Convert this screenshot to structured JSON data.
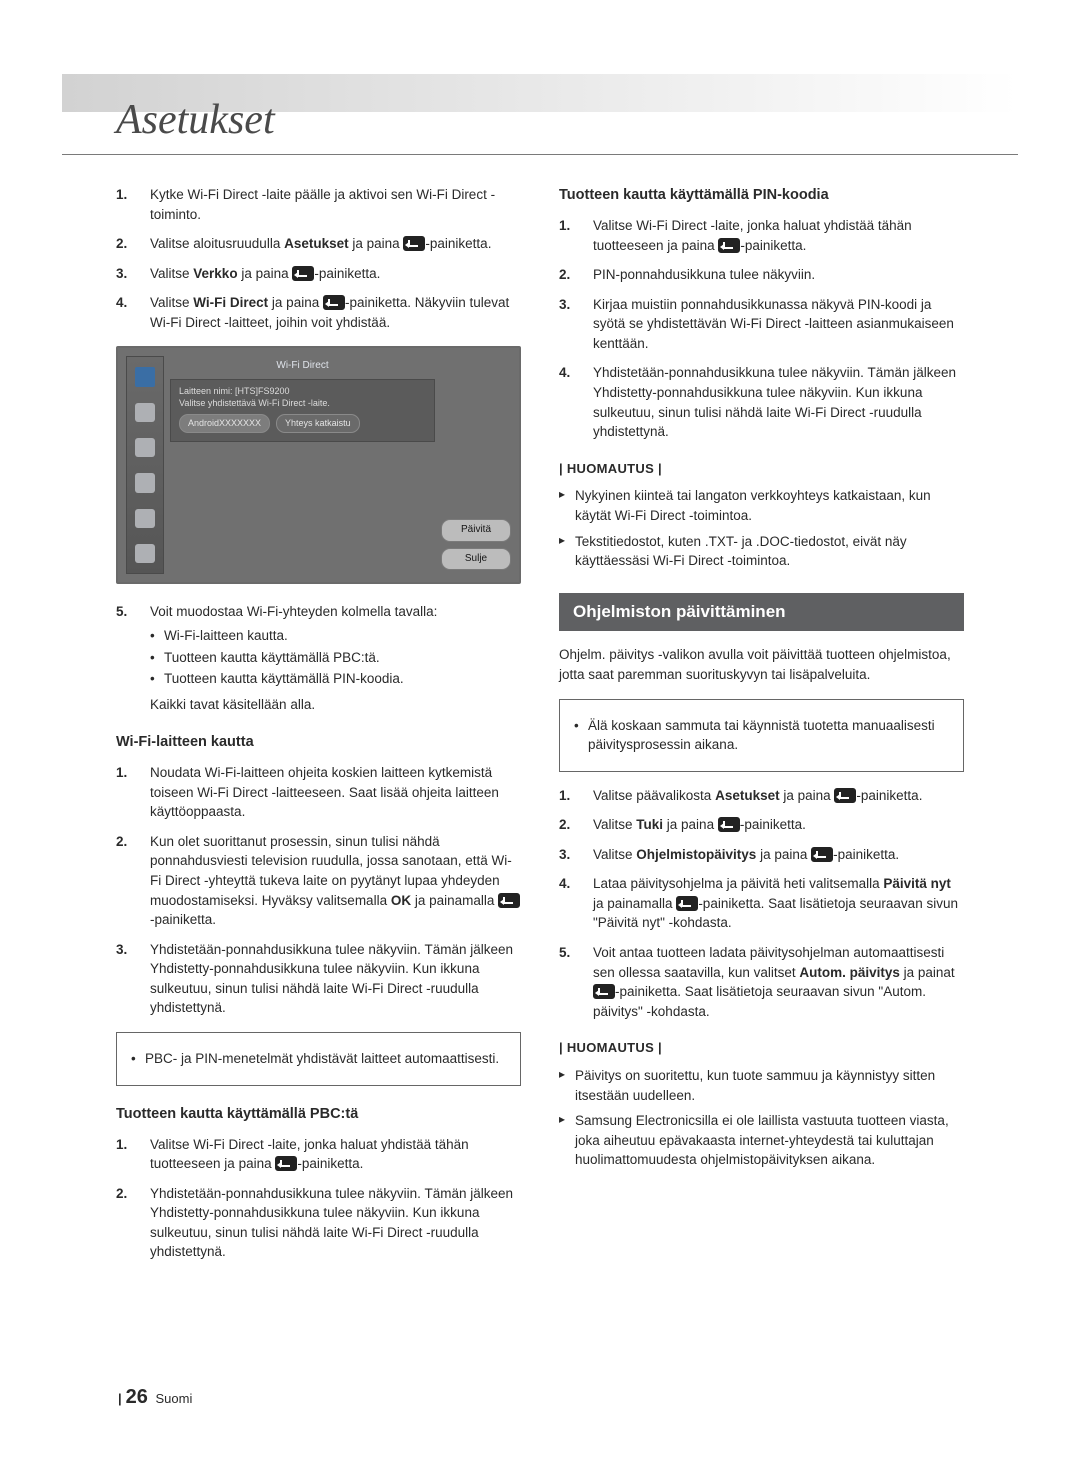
{
  "header": {
    "title": "Asetukset"
  },
  "left": {
    "steps_a": [
      "Kytke Wi-Fi Direct -laite päälle ja aktivoi sen Wi-Fi Direct -toiminto.",
      {
        "pre": "Valitse aloitusruudulla ",
        "bold": "Asetukset",
        "mid": " ja paina ",
        "suffix": "-painiketta."
      },
      {
        "pre": "Valitse ",
        "bold": "Verkko",
        "mid": " ja paina ",
        "suffix": "-painiketta."
      },
      {
        "pre": "Valitse ",
        "bold": "Wi-Fi Direct",
        "mid": " ja paina ",
        "suffix": "-painiketta. Näkyviin tulevat Wi-Fi Direct -laitteet, joihin voit yhdistää."
      }
    ],
    "screenshot": {
      "title": "Wi-Fi Direct",
      "line1": "Laitteen nimi: [HTS]FS9200",
      "line2": "Valitse yhdistettävä Wi-Fi Direct -laite.",
      "device": "AndroidXXXXXXX",
      "status": "Yhteys katkaistu",
      "btn_refresh": "Päivitä",
      "btn_close": "Sulje"
    },
    "step5_intro": "Voit muodostaa Wi-Fi-yhteyden kolmella tavalla:",
    "step5_bullets": [
      "Wi-Fi-laitteen kautta.",
      "Tuotteen kautta käyttämällä PBC:tä.",
      "Tuotteen kautta käyttämällä PIN-koodia."
    ],
    "step5_after": "Kaikki tavat käsitellään alla.",
    "h_wifi": "Wi-Fi-laitteen kautta",
    "wifi_steps": [
      "Noudata Wi-Fi-laitteen ohjeita koskien laitteen kytkemistä toiseen Wi-Fi Direct -laitteeseen. Saat lisää ohjeita laitteen käyttöoppaasta.",
      {
        "text": "Kun olet suorittanut prosessin, sinun tulisi nähdä ponnahdusviesti television ruudulla, jossa sanotaan, että Wi-Fi Direct -yhteyttä tukeva laite on pyytänyt lupaa yhdeyden muodostamiseksi. Hyväksy valitsemalla ",
        "bold": "OK",
        "mid": " ja painamalla ",
        "suffix": "-painiketta."
      },
      "Yhdistetään-ponnahdusikkuna tulee näkyviin. Tämän jälkeen Yhdistetty-ponnahdusikkuna tulee näkyviin. Kun ikkuna sulkeutuu, sinun tulisi nähdä laite Wi-Fi Direct -ruudulla yhdistettynä."
    ],
    "box_note": "PBC- ja PIN-menetelmät yhdistävät laitteet automaattisesti.",
    "h_pbc": "Tuotteen kautta käyttämällä PBC:tä",
    "pbc_steps": [
      {
        "text": "Valitse Wi-Fi Direct -laite, jonka haluat yhdistää tähän tuotteeseen ja paina ",
        "suffix": "-painiketta."
      },
      "Yhdistetään-ponnahdusikkuna tulee näkyviin. Tämän jälkeen Yhdistetty-ponnahdusikkuna tulee näkyviin. Kun ikkuna sulkeutuu, sinun tulisi nähdä laite Wi-Fi Direct -ruudulla yhdistettynä."
    ]
  },
  "right": {
    "h_pin": "Tuotteen kautta käyttämällä PIN-koodia",
    "pin_steps": [
      {
        "text": "Valitse Wi-Fi Direct -laite, jonka haluat yhdistää tähän tuotteeseen ja paina ",
        "suffix": "-painiketta."
      },
      "PIN-ponnahdusikkuna tulee näkyviin.",
      "Kirjaa muistiin ponnahdusikkunassa näkyvä PIN-koodi ja syötä se yhdistettävän Wi-Fi Direct -laitteen asianmukaiseen kenttään.",
      "Yhdistetään-ponnahdusikkuna tulee näkyviin. Tämän jälkeen Yhdistetty-ponnahdusikkuna tulee näkyviin. Kun ikkuna sulkeutuu, sinun tulisi nähdä laite Wi-Fi Direct -ruudulla yhdistettynä."
    ],
    "note_label": "| HUOMAUTUS |",
    "notes_a": [
      "Nykyinen kiinteä tai langaton verkkoyhteys katkaistaan, kun käytät Wi-Fi Direct -toimintoa.",
      "Tekstitiedostot, kuten .TXT- ja .DOC-tiedostot, eivät näy käyttäessäsi Wi-Fi Direct -toimintoa."
    ],
    "section_title": "Ohjelmiston päivittäminen",
    "section_intro": "Ohjelm. päivitys -valikon avulla voit päivittää tuotteen ohjelmistoa, jotta saat paremman suorituskyvyn tai lisäpalveluita.",
    "warn_box": "Älä koskaan sammuta tai käynnistä tuotetta manuaalisesti päivitysprosessin aikana.",
    "upd_steps": [
      {
        "pre": "Valitse päävalikosta ",
        "bold": "Asetukset",
        "mid": " ja paina ",
        "suffix": "-painiketta."
      },
      {
        "pre": "Valitse ",
        "bold": "Tuki",
        "mid": " ja paina ",
        "suffix": "-painiketta."
      },
      {
        "pre": "Valitse ",
        "bold": "Ohjelmistopäivitys",
        "mid": " ja paina ",
        "suffix": "-painiketta."
      },
      {
        "text": "Lataa päivitysohjelma ja päivitä heti valitsemalla ",
        "bold": "Päivitä nyt",
        "mid": " ja painamalla ",
        "suffix": "-painiketta. Saat lisätietoja seuraavan sivun \"Päivitä nyt\" -kohdasta."
      },
      {
        "text": "Voit antaa tuotteen ladata päivitysohjelman automaattisesti sen ollessa saatavilla, kun valitset ",
        "bold": "Autom. päivitys",
        "mid": " ja painat ",
        "suffix": "-painiketta. Saat lisätietoja seuraavan sivun \"Autom. päivitys\" -kohdasta."
      }
    ],
    "notes_b": [
      "Päivitys on suoritettu, kun tuote sammuu ja käynnistyy sitten itsestään uudelleen.",
      "Samsung Electronicsilla ei ole laillista vastuuta tuotteen viasta, joka aiheutuu epävakaasta internet-yhteydestä tai kuluttajan huolimattomuudesta ohjelmistopäivityksen aikana."
    ]
  },
  "footer": {
    "page": "26",
    "lang": "Suomi"
  }
}
